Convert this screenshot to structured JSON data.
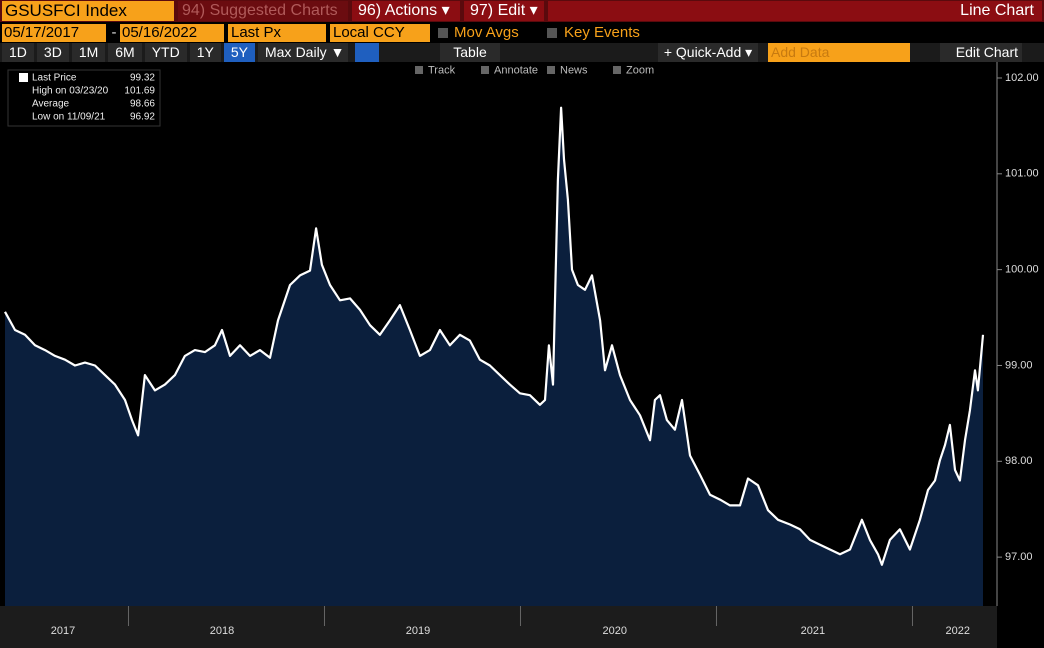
{
  "header": {
    "security": "GSUSFCI Index",
    "suggested": "94) Suggested Charts",
    "actions": "96) Actions ▾",
    "edit": "97) Edit ▾",
    "view": "Line Chart"
  },
  "controls": {
    "start_date": "05/17/2017",
    "separator": "-",
    "end_date": "05/16/2022",
    "field": "Last Px",
    "currency": "Local CCY",
    "mov_avgs": "Mov Avgs",
    "key_events": "Key Events"
  },
  "toolbar": {
    "periods": [
      "1D",
      "3D",
      "1M",
      "6M",
      "YTD",
      "1Y",
      "5Y",
      "Max"
    ],
    "selected_period": 6,
    "frequency": "Daily ▼",
    "table": "Table",
    "quick_add": "+ Quick-Add ▾",
    "add_data": "Add Data",
    "edit_chart": "Edit Chart"
  },
  "tools": [
    "Track",
    "Annotate",
    "News",
    "Zoom"
  ],
  "chart_data": {
    "type": "line",
    "color": "#ffffff",
    "fill": "#0b1f3d",
    "x": [
      2017.37,
      2017.421,
      2017.472,
      2017.523,
      2017.574,
      2017.625,
      2017.676,
      2017.727,
      2017.778,
      2017.829,
      2017.88,
      2017.931,
      2017.982,
      2018.018,
      2018.049,
      2018.084,
      2018.135,
      2018.186,
      2018.237,
      2018.288,
      2018.339,
      2018.39,
      2018.441,
      2018.477,
      2018.518,
      2018.569,
      2018.62,
      2018.671,
      2018.722,
      2018.763,
      2018.824,
      2018.875,
      2018.926,
      2018.957,
      2018.987,
      2019.028,
      2019.079,
      2019.13,
      2019.181,
      2019.232,
      2019.283,
      2019.334,
      2019.385,
      2019.436,
      2019.487,
      2019.538,
      2019.589,
      2019.64,
      2019.691,
      2019.742,
      2019.793,
      2019.844,
      2019.895,
      2019.946,
      2019.997,
      2020.048,
      2020.099,
      2020.125,
      2020.145,
      2020.166,
      2020.191,
      2020.207,
      2020.222,
      2020.242,
      2020.263,
      2020.293,
      2020.329,
      2020.365,
      2020.406,
      2020.431,
      2020.467,
      2020.508,
      2020.559,
      2020.61,
      2020.661,
      2020.686,
      2020.712,
      2020.747,
      2020.788,
      2020.824,
      2020.865,
      2020.916,
      2020.967,
      2021.018,
      2021.069,
      2021.12,
      2021.161,
      2021.212,
      2021.263,
      2021.314,
      2021.375,
      2021.426,
      2021.477,
      2021.528,
      2021.579,
      2021.63,
      2021.681,
      2021.742,
      2021.783,
      2021.824,
      2021.844,
      2021.885,
      2021.936,
      2021.987,
      2022.038,
      2022.079,
      2022.115,
      2022.14,
      2022.166,
      2022.191,
      2022.217,
      2022.242,
      2022.268,
      2022.293,
      2022.319,
      2022.334,
      2022.36
    ],
    "values": [
      99.56,
      99.37,
      99.32,
      99.21,
      99.16,
      99.1,
      99.06,
      99.0,
      99.03,
      99.0,
      98.9,
      98.8,
      98.64,
      98.43,
      98.27,
      98.9,
      98.74,
      98.8,
      98.9,
      99.1,
      99.16,
      99.14,
      99.21,
      99.37,
      99.1,
      99.21,
      99.1,
      99.16,
      99.08,
      99.47,
      99.84,
      99.94,
      99.99,
      100.43,
      100.05,
      99.84,
      99.68,
      99.7,
      99.58,
      99.42,
      99.32,
      99.47,
      99.63,
      99.37,
      99.1,
      99.16,
      99.37,
      99.21,
      99.32,
      99.26,
      99.06,
      99.0,
      98.9,
      98.8,
      98.71,
      98.69,
      98.59,
      98.64,
      99.21,
      98.8,
      100.94,
      101.69,
      101.15,
      100.73,
      100.0,
      99.84,
      99.79,
      99.94,
      99.47,
      98.95,
      99.21,
      98.9,
      98.64,
      98.48,
      98.22,
      98.64,
      98.69,
      98.43,
      98.33,
      98.64,
      98.06,
      97.86,
      97.65,
      97.6,
      97.54,
      97.54,
      97.82,
      97.75,
      97.49,
      97.39,
      97.34,
      97.29,
      97.18,
      97.13,
      97.08,
      97.03,
      97.08,
      97.39,
      97.18,
      97.03,
      96.92,
      97.18,
      97.29,
      97.08,
      97.39,
      97.7,
      97.8,
      98.01,
      98.17,
      98.38,
      97.91,
      97.8,
      98.22,
      98.53,
      98.95,
      98.74,
      99.32
    ],
    "xlim": [
      2017.37,
      2022.37
    ],
    "ylim": [
      96.49,
      102.125
    ],
    "xticks": [
      {
        "value": 2017.666,
        "label": "2017"
      },
      {
        "value": 2018.477,
        "label": "2018"
      },
      {
        "value": 2019.477,
        "label": "2019"
      },
      {
        "value": 2020.481,
        "label": "2020"
      },
      {
        "value": 2021.492,
        "label": "2021"
      },
      {
        "value": 2022.231,
        "label": "2022"
      }
    ],
    "yticks": [
      {
        "value": 97,
        "label": "97.00"
      },
      {
        "value": 98,
        "label": "98.00"
      },
      {
        "value": 99,
        "label": "99.00"
      },
      {
        "value": 100,
        "label": "100.00"
      },
      {
        "value": 101,
        "label": "101.00"
      },
      {
        "value": 102,
        "label": "102.00"
      }
    ],
    "legend": [
      {
        "label": "Last Price",
        "value": 99.32
      },
      {
        "label": "High on 03/23/20",
        "value": 101.69
      },
      {
        "label": "Average",
        "value": 98.66
      },
      {
        "label": "Low on 11/09/21",
        "value": 96.92
      }
    ]
  }
}
